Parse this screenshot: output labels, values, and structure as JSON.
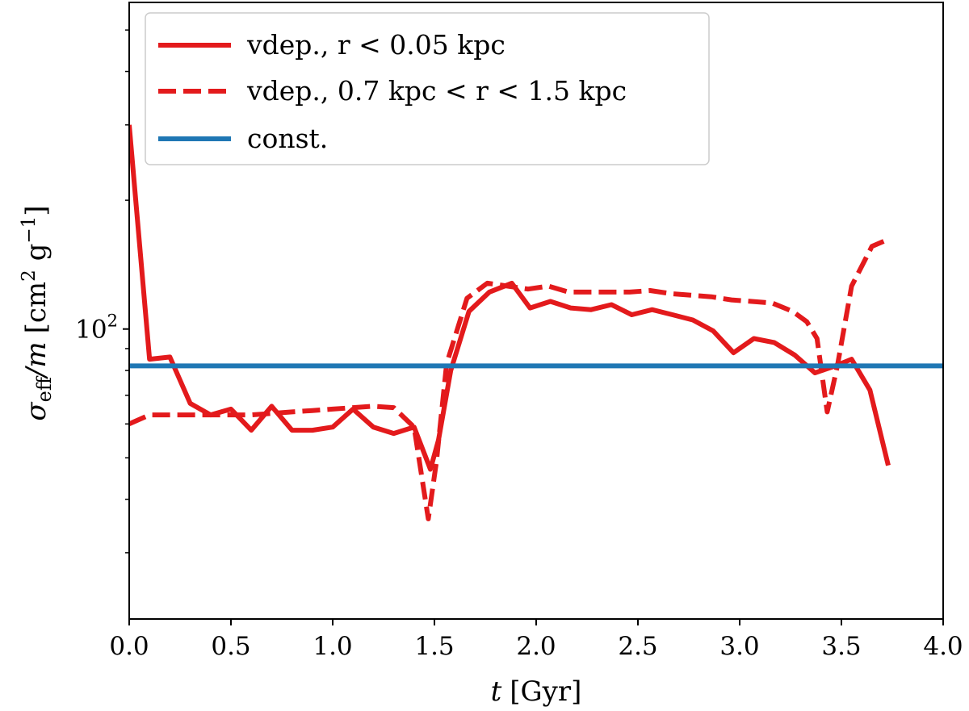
{
  "chart_data": {
    "type": "line",
    "title": "",
    "xlabel": {
      "main": "t",
      "unit": "[Gyr]"
    },
    "ylabel": {
      "sigma": "σ",
      "sub": "eff",
      "over_m": "/m",
      "unit_open": "[cm",
      "unit_exp": "2",
      "unit_mid": " g",
      "unit_exp2": "−1",
      "unit_close": "]"
    },
    "xlim": [
      0.0,
      4.0
    ],
    "ylim": [
      21,
      580
    ],
    "yscale": "log",
    "x_ticks": [
      "0.0",
      "0.5",
      "1.0",
      "1.5",
      "2.0",
      "2.5",
      "3.0",
      "3.5",
      "4.0"
    ],
    "y_tick_label": {
      "base": "10",
      "exp": "2"
    },
    "legend_position": "upper-left",
    "series": [
      {
        "name": "vdep., r < 0.05 kpc",
        "style": "solid",
        "color": "#e31a1c",
        "x": [
          0.0,
          0.1,
          0.2,
          0.3,
          0.4,
          0.5,
          0.6,
          0.7,
          0.8,
          0.9,
          1.0,
          1.1,
          1.2,
          1.3,
          1.4,
          1.48,
          1.52,
          1.58,
          1.67,
          1.77,
          1.88,
          1.97,
          2.07,
          2.17,
          2.27,
          2.37,
          2.47,
          2.57,
          2.67,
          2.77,
          2.87,
          2.97,
          3.07,
          3.17,
          3.27,
          3.37,
          3.47,
          3.55,
          3.64,
          3.73
        ],
        "y": [
          300,
          85,
          86,
          67,
          63,
          65,
          58,
          66,
          58,
          58,
          59,
          65,
          59,
          57,
          59,
          47,
          55,
          80,
          110,
          122,
          128,
          112,
          116,
          112,
          111,
          114,
          108,
          111,
          108,
          105,
          99,
          88,
          95,
          93,
          87,
          79,
          82,
          85,
          72,
          48
        ]
      },
      {
        "name": "vdep., 0.7 kpc < r < 1.5 kpc",
        "style": "dashed",
        "color": "#e31a1c",
        "x": [
          0.0,
          0.1,
          0.2,
          0.3,
          0.4,
          0.5,
          0.6,
          0.7,
          0.8,
          0.9,
          1.0,
          1.1,
          1.2,
          1.3,
          1.4,
          1.47,
          1.51,
          1.56,
          1.66,
          1.76,
          1.86,
          1.96,
          2.06,
          2.16,
          2.26,
          2.36,
          2.46,
          2.56,
          2.66,
          2.76,
          2.86,
          2.96,
          3.06,
          3.16,
          3.26,
          3.33,
          3.38,
          3.43,
          3.48,
          3.55,
          3.65,
          3.73
        ],
        "y": [
          60,
          63,
          63,
          63,
          63,
          63,
          63,
          63.5,
          64,
          64.5,
          65,
          65.5,
          66,
          65.5,
          59,
          36,
          49,
          83,
          118,
          128,
          126,
          124,
          126,
          122,
          122,
          122,
          122,
          123,
          121,
          120,
          119,
          117,
          116,
          115,
          110,
          104,
          95,
          64,
          82,
          126,
          156,
          162
        ]
      },
      {
        "name": "const.",
        "style": "solid",
        "color": "#1f77b4",
        "x": [
          0.0,
          4.0
        ],
        "y": [
          82,
          82
        ]
      }
    ]
  }
}
